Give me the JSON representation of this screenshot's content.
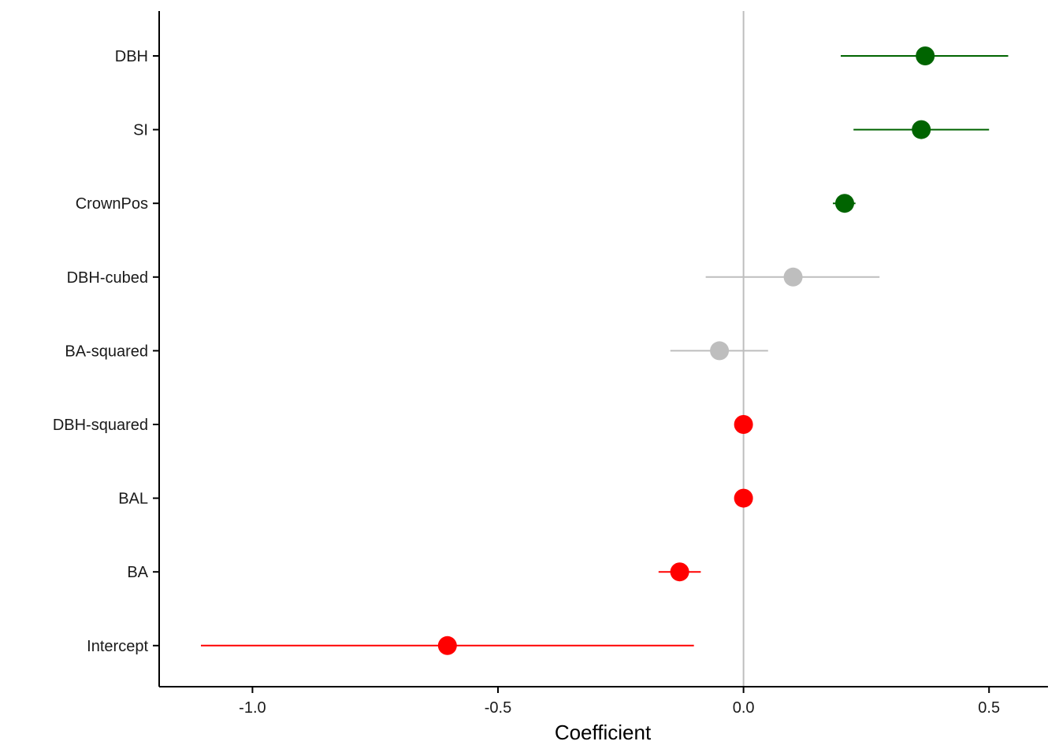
{
  "chart_data": {
    "type": "scatter",
    "subtype": "coefficient-plot-with-intervals",
    "title": "",
    "xlabel": "Coefficient",
    "ylabel": "",
    "xlim": [
      -1.19,
      0.62
    ],
    "x_ticks": [
      -1.0,
      -0.5,
      0.0,
      0.5
    ],
    "x_tick_labels": [
      "-1.0",
      "-0.5",
      "0.0",
      "0.5"
    ],
    "reference_line_x": 0.0,
    "grid": false,
    "legend": "none",
    "colors": {
      "positive": "#006400",
      "not_significant": "#bebebe",
      "negative": "#ff0000",
      "reference_line": "#bebebe",
      "axis": "#000000"
    },
    "categories": [
      "DBH",
      "SI",
      "CrownPos",
      "DBH-cubed",
      "BA-squared",
      "DBH-squared",
      "BAL",
      "BA",
      "Intercept"
    ],
    "points": [
      {
        "label": "DBH",
        "estimate": 0.37,
        "lower": 0.198,
        "upper": 0.539,
        "group": "positive"
      },
      {
        "label": "SI",
        "estimate": 0.362,
        "lower": 0.224,
        "upper": 0.5,
        "group": "positive"
      },
      {
        "label": "CrownPos",
        "estimate": 0.206,
        "lower": 0.182,
        "upper": 0.228,
        "group": "positive"
      },
      {
        "label": "DBH-cubed",
        "estimate": 0.101,
        "lower": -0.077,
        "upper": 0.277,
        "group": "not_significant"
      },
      {
        "label": "BA-squared",
        "estimate": -0.049,
        "lower": -0.149,
        "upper": 0.05,
        "group": "not_significant"
      },
      {
        "label": "DBH-squared",
        "estimate": 0.0,
        "lower": -0.004,
        "upper": 0.004,
        "group": "negative"
      },
      {
        "label": "BAL",
        "estimate": 0.0,
        "lower": -0.004,
        "upper": 0.004,
        "group": "negative"
      },
      {
        "label": "BA",
        "estimate": -0.13,
        "lower": -0.173,
        "upper": -0.087,
        "group": "negative"
      },
      {
        "label": "Intercept",
        "estimate": -0.603,
        "lower": -1.105,
        "upper": -0.101,
        "group": "negative"
      }
    ]
  }
}
